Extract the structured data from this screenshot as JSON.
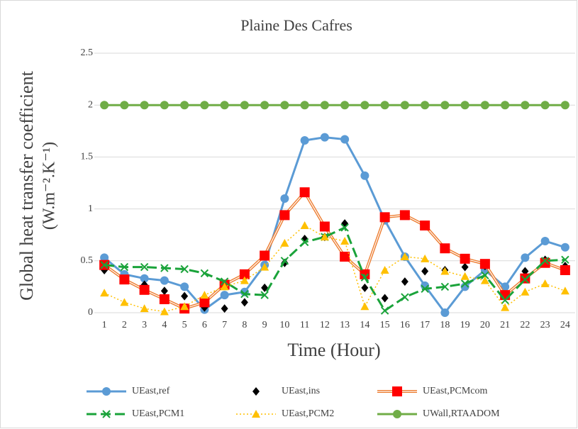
{
  "chart_data": {
    "type": "line",
    "title": "Plaine Des Cafres",
    "x_label": "Time (Hour)",
    "y_label": [
      "Global heat transfer  coefficient",
      "(W.m⁻².K⁻¹)"
    ],
    "categories": [
      "1",
      "2",
      "3",
      "4",
      "5",
      "6",
      "7",
      "8",
      "9",
      "10",
      "11",
      "12",
      "13",
      "14",
      "15",
      "16",
      "17",
      "18",
      "19",
      "20",
      "21",
      "22",
      "23",
      "24"
    ],
    "ylim": [
      0,
      2.5
    ],
    "yticks": [
      0,
      0.5,
      1,
      1.5,
      2,
      2.5
    ],
    "grid": true,
    "legend": "bottom",
    "series": [
      {
        "name": "UEast,ref",
        "color": "#5b9bd5",
        "marker": "circle",
        "marker_color": "#5b9bd5",
        "line": "solid",
        "values": [
          0.53,
          0.37,
          0.33,
          0.31,
          0.25,
          0.03,
          0.17,
          0.2,
          0.46,
          1.1,
          1.66,
          1.69,
          1.67,
          1.32,
          0.89,
          0.54,
          0.26,
          0.0,
          0.25,
          0.41,
          0.25,
          0.53,
          0.69,
          0.63
        ]
      },
      {
        "name": "UEast,ins",
        "color": "#000000",
        "marker": "diamond",
        "marker_color": "#000000",
        "line": "none",
        "values": [
          0.41,
          0.32,
          0.27,
          0.21,
          0.16,
          0.05,
          0.04,
          0.1,
          0.24,
          0.48,
          0.71,
          0.73,
          0.86,
          0.24,
          0.14,
          0.3,
          0.4,
          0.41,
          0.44,
          0.45,
          0.17,
          0.4,
          0.51,
          0.45
        ]
      },
      {
        "name": "UEast,PCMcom",
        "color": "#ed7d31",
        "marker": "square",
        "marker_color": "#ff0000",
        "line": "double",
        "values": [
          0.46,
          0.32,
          0.22,
          0.13,
          0.04,
          0.1,
          0.27,
          0.37,
          0.55,
          0.94,
          1.16,
          0.83,
          0.54,
          0.37,
          0.92,
          0.94,
          0.84,
          0.62,
          0.52,
          0.47,
          0.17,
          0.33,
          0.48,
          0.41
        ]
      },
      {
        "name": "UEast,PCM1",
        "color": "#1aa33a",
        "marker": "x",
        "marker_color": "#1aa33a",
        "line": "dashed",
        "values": [
          0.46,
          0.44,
          0.44,
          0.43,
          0.42,
          0.38,
          0.3,
          0.18,
          0.17,
          0.5,
          0.68,
          0.73,
          0.82,
          0.34,
          0.02,
          0.15,
          0.23,
          0.25,
          0.28,
          0.36,
          0.12,
          0.32,
          0.5,
          0.51
        ]
      },
      {
        "name": "UEast,PCM2",
        "color": "#ffc000",
        "marker": "triangle",
        "marker_color": "#ffc000",
        "line": "dotted",
        "values": [
          0.19,
          0.1,
          0.04,
          0.01,
          0.06,
          0.17,
          0.25,
          0.31,
          0.44,
          0.67,
          0.84,
          0.73,
          0.69,
          0.06,
          0.41,
          0.54,
          0.52,
          0.4,
          0.35,
          0.31,
          0.05,
          0.2,
          0.28,
          0.21
        ]
      },
      {
        "name": "UWall,RTAADOM",
        "color": "#70ad47",
        "marker": "circle",
        "marker_color": "#70ad47",
        "line": "solid",
        "values": [
          2,
          2,
          2,
          2,
          2,
          2,
          2,
          2,
          2,
          2,
          2,
          2,
          2,
          2,
          2,
          2,
          2,
          2,
          2,
          2,
          2,
          2,
          2,
          2
        ]
      }
    ]
  }
}
